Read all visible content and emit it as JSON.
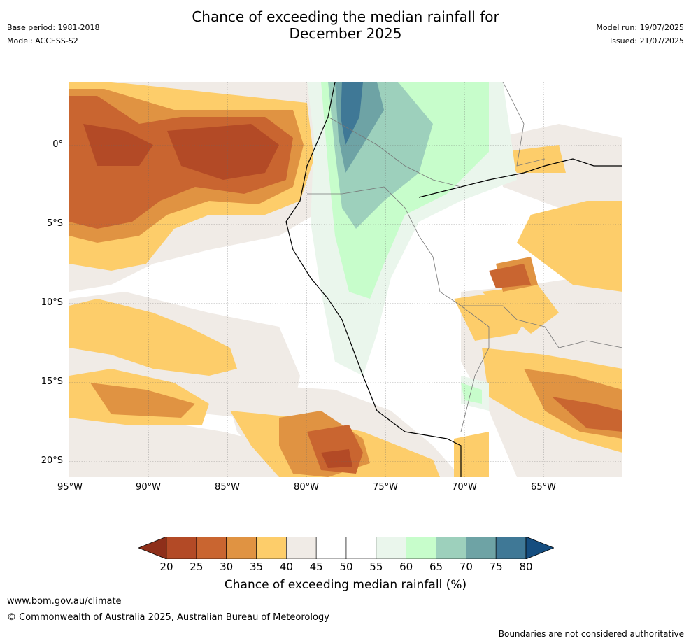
{
  "title_line1": "Chance of exceeding the median rainfall for",
  "title_line2": "December 2025",
  "base_period": "Base period: 1981-2018",
  "model": "Model: ACCESS-S2",
  "model_run": "Model run: 19/07/2025",
  "issued": "Issued: 21/07/2025",
  "lat_labels": [
    "0°",
    "5°S",
    "10°S",
    "15°S",
    "20°S"
  ],
  "lon_labels": [
    "95°W",
    "90°W",
    "85°W",
    "80°W",
    "75°W",
    "70°W",
    "65°W"
  ],
  "colorbar": {
    "ticks": [
      "20",
      "25",
      "30",
      "35",
      "40",
      "45",
      "50",
      "55",
      "60",
      "65",
      "70",
      "75",
      "80"
    ],
    "colors": [
      "#8e2f1a",
      "#b34a26",
      "#c96530",
      "#e09342",
      "#fdcd6a",
      "#f0ebe6",
      "#ffffff",
      "#ffffff",
      "#eaf6ec",
      "#c7fdcb",
      "#9dd0bc",
      "#6ea3a5",
      "#3f7896",
      "#154d7f"
    ],
    "title": "Chance of exceeding median rainfall (%)"
  },
  "footer_url": "www.bom.gov.au/climate",
  "footer_copyright": "© Commonwealth of Australia 2025, Australian Bureau of Meteorology",
  "disclaimer": "Boundaries are not considered authoritative"
}
